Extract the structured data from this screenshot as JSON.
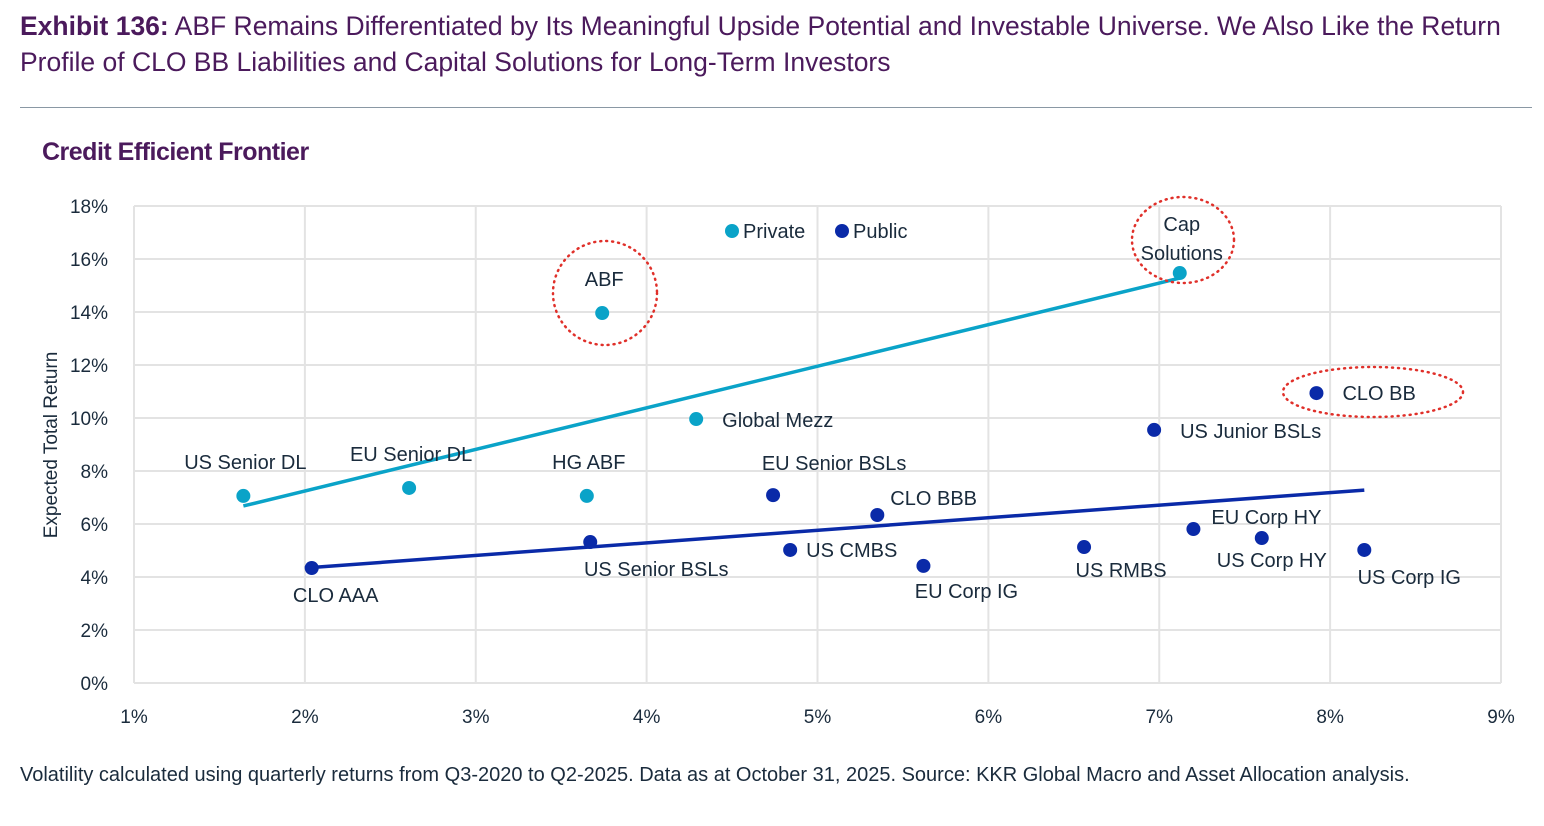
{
  "title": {
    "exhibit": "Exhibit 136:",
    "text": "ABF Remains Differentiated by Its Meaningful Upside Potential and Investable Universe. We Also Like the Return Profile of CLO BB Liabilities and Capital Solutions for Long-Term Investors"
  },
  "footnote": "Volatility calculated using quarterly returns from Q3-2020 to Q2-2025. Data as at October 31, 2025. Source: KKR Global Macro and Asset Allocation analysis.",
  "chart_data": {
    "type": "scatter",
    "title": "Credit Efficient Frontier",
    "xlabel": "",
    "ylabel": "Expected Total Return",
    "xlim": [
      1,
      9
    ],
    "ylim": [
      0,
      18
    ],
    "xticks": [
      "1%",
      "2%",
      "3%",
      "4%",
      "5%",
      "6%",
      "7%",
      "8%",
      "9%"
    ],
    "yticks": [
      "0%",
      "2%",
      "4%",
      "6%",
      "8%",
      "10%",
      "12%",
      "14%",
      "16%",
      "18%"
    ],
    "grid": true,
    "legend_position": "top-center",
    "colors": {
      "Private": "#0aa3c8",
      "Public": "#0a2aa8",
      "highlight": "#e0302a"
    },
    "series": [
      {
        "name": "Private",
        "points": [
          {
            "label": "US Senior DL",
            "x": 1.64,
            "y": 7.06
          },
          {
            "label": "EU Senior DL",
            "x": 2.61,
            "y": 7.36
          },
          {
            "label": "HG ABF",
            "x": 3.65,
            "y": 7.06
          },
          {
            "label": "ABF",
            "x": 3.74,
            "y": 13.96
          },
          {
            "label": "Global Mezz",
            "x": 4.29,
            "y": 9.96
          },
          {
            "label": "Cap Solutions",
            "x": 7.12,
            "y": 15.47
          }
        ],
        "trendline": [
          [
            1.64,
            6.68
          ],
          [
            7.12,
            15.28
          ]
        ]
      },
      {
        "name": "Public",
        "points": [
          {
            "label": "CLO AAA",
            "x": 2.04,
            "y": 4.34
          },
          {
            "label": "US Senior BSLs",
            "x": 3.67,
            "y": 5.32
          },
          {
            "label": "EU Senior BSLs",
            "x": 4.74,
            "y": 7.09
          },
          {
            "label": "US CMBS",
            "x": 4.84,
            "y": 5.02
          },
          {
            "label": "CLO BBB",
            "x": 5.35,
            "y": 6.34
          },
          {
            "label": "EU Corp IG",
            "x": 5.62,
            "y": 4.42
          },
          {
            "label": "US RMBS",
            "x": 6.56,
            "y": 5.13
          },
          {
            "label": "US Junior BSLs",
            "x": 6.97,
            "y": 9.55
          },
          {
            "label": "CLO BB",
            "x": 7.92,
            "y": 10.94
          },
          {
            "label": "EU Corp HY",
            "x": 7.2,
            "y": 5.81
          },
          {
            "label": "US Corp HY",
            "x": 7.6,
            "y": 5.47
          },
          {
            "label": "US Corp IG",
            "x": 8.2,
            "y": 5.02
          }
        ],
        "trendline": [
          [
            2.0,
            4.34
          ],
          [
            8.2,
            7.28
          ]
        ]
      }
    ],
    "highlighted": [
      "ABF",
      "Cap Solutions",
      "CLO BB"
    ]
  }
}
